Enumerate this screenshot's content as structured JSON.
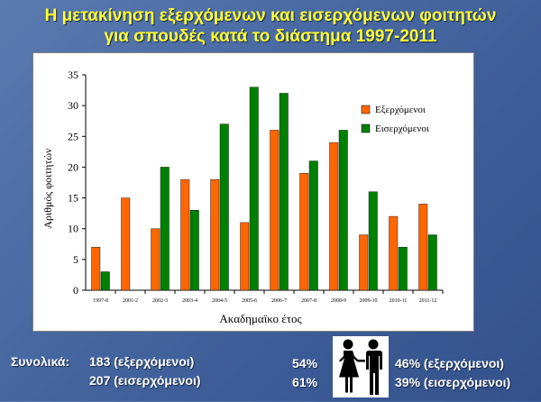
{
  "title_line1": "Η μετακίνηση εξερχόμενων και εισερχόμενων φοιτητών",
  "title_line2": "για σπουδές κατά το διάστημα 1997-2011",
  "chart_data": {
    "type": "bar",
    "categories": [
      "1997-8",
      "2001-2",
      "2002-3",
      "2003-4",
      "2004-5",
      "2005-6",
      "2006-7",
      "2007-8",
      "2008-9",
      "2009-10",
      "2010-11",
      "2011-12"
    ],
    "series": [
      {
        "name": "Εξερχόμενοι",
        "color": "#ff6600",
        "values": [
          7,
          15,
          10,
          18,
          18,
          11,
          26,
          19,
          24,
          9,
          12,
          14
        ]
      },
      {
        "name": "Εισερχόμενοι",
        "color": "#008000",
        "values": [
          3,
          0,
          20,
          13,
          27,
          33,
          32,
          21,
          26,
          16,
          7,
          9
        ]
      }
    ],
    "xlabel": "Ακαδημαϊκο έτος",
    "ylabel": "Αριθμός φοιτητών",
    "ylim": [
      0,
      35
    ],
    "yticks": [
      "0",
      "5",
      "10",
      "15",
      "20",
      "25",
      "30",
      "35"
    ],
    "legend": "right"
  },
  "footer": {
    "total_label": "Συνολικά:",
    "outgoing_total": "183 (εξερχόμενοι)",
    "incoming_total": "207 (εισερχόμενοι)",
    "female_outgoing": "54%",
    "female_incoming": "61%",
    "male_outgoing": "46% (εξερχόμενοι)",
    "male_incoming": "39% (εισερχόμενοι)"
  },
  "icon": "man-woman-icon"
}
